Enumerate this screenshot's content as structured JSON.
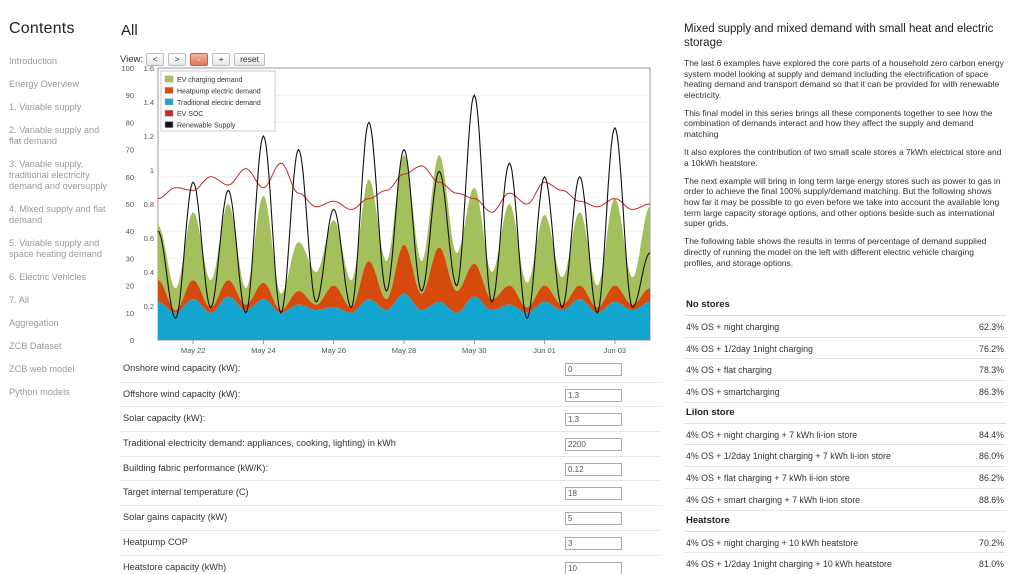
{
  "sidebar": {
    "title": "Contents",
    "items": [
      "Introduction",
      "Energy Overview",
      "1. Variable supply",
      "2. Variable supply and flat demand",
      "3. Variable supply, traditional electricity demand and oversupply",
      "4. Mixed supply and flat demand",
      "5. Variable supply and space heating demand",
      "6. Electric Vehicles",
      "7. All",
      "Aggregation",
      "ZCB Dataset",
      "ZCB web model",
      "Python models"
    ]
  },
  "main": {
    "title": "All",
    "view_label": "View:",
    "view_buttons": [
      "<",
      ">",
      "-",
      "+",
      "reset"
    ]
  },
  "chart_data": {
    "type": "area",
    "y_left": {
      "ticks": [
        0,
        10,
        20,
        30,
        40,
        50,
        60,
        70,
        80,
        90,
        100
      ],
      "ylim": [
        0,
        100
      ]
    },
    "y_right": {
      "ticks": [
        0.2,
        0.4,
        0.6,
        0.8,
        1.0,
        1.2,
        1.4,
        1.6
      ],
      "ylim": [
        0,
        1.6
      ]
    },
    "x_ticks": [
      "May 22",
      "May 24",
      "May 26",
      "May 28",
      "May 30",
      "Jun 01",
      "Jun 03"
    ],
    "x_range": [
      "May 21",
      "Jun 04"
    ],
    "legend": {
      "placement": "top-left",
      "entries": [
        {
          "name": "EV charging demand",
          "color": "#a4c05c"
        },
        {
          "name": "Heatpump electric demand",
          "color": "#d64b0c"
        },
        {
          "name": "Traditional electric demand",
          "color": "#12a5d0"
        },
        {
          "name": "EV SOC",
          "color": "#c62828"
        },
        {
          "name": "Renewable Supply",
          "color": "#111111"
        }
      ]
    },
    "x_days": [
      0.0,
      0.5,
      1.0,
      1.5,
      2.0,
      2.5,
      3.0,
      3.5,
      4.0,
      4.5,
      5.0,
      5.5,
      6.0,
      6.5,
      7.0,
      7.5,
      8.0,
      8.5,
      9.0,
      9.5,
      10.0,
      10.5,
      11.0,
      11.5,
      12.0,
      12.5,
      13.0,
      13.5,
      14.0
    ],
    "series": [
      {
        "name": "Traditional electric demand",
        "values": [
          14,
          10,
          15,
          10,
          16,
          11,
          15,
          10,
          13,
          11,
          12,
          10,
          15,
          11,
          17,
          11,
          14,
          10,
          16,
          11,
          13,
          10,
          14,
          11,
          15,
          10,
          14,
          11,
          14
        ]
      },
      {
        "name": "Heatpump electric demand",
        "values": [
          8,
          1,
          7,
          2,
          6,
          2,
          6,
          1,
          5,
          2,
          8,
          2,
          14,
          4,
          18,
          6,
          20,
          8,
          12,
          4,
          7,
          2,
          6,
          2,
          5,
          2,
          6,
          2,
          5
        ]
      },
      {
        "name": "EV charging demand",
        "values": [
          20,
          8,
          25,
          10,
          28,
          6,
          32,
          6,
          18,
          12,
          24,
          10,
          30,
          14,
          33,
          12,
          34,
          14,
          28,
          10,
          30,
          9,
          26,
          10,
          27,
          8,
          32,
          10,
          30
        ]
      },
      {
        "name": "EV SOC",
        "values": [
          52,
          56,
          55,
          60,
          57,
          63,
          56,
          65,
          54,
          49,
          51,
          48,
          52,
          55,
          61,
          64,
          58,
          54,
          52,
          47,
          54,
          50,
          58,
          55,
          51,
          49,
          52,
          48,
          50
        ]
      },
      {
        "name": "Renewable Supply",
        "values": [
          40,
          8,
          58,
          12,
          55,
          10,
          75,
          10,
          70,
          14,
          48,
          12,
          80,
          18,
          70,
          18,
          62,
          20,
          90,
          14,
          65,
          8,
          60,
          12,
          60,
          10,
          78,
          12,
          32
        ]
      }
    ]
  },
  "params": [
    {
      "label": "Onshore wind capacity (kW):",
      "value": "0"
    },
    {
      "label": "Offshore wind capacity (kW):",
      "value": "1.3"
    },
    {
      "label": "Solar capacity (kW):",
      "value": "1.3"
    },
    {
      "label": "Traditional electricity demand: appliances, cooking, lighting) in kWh",
      "value": "2200"
    },
    {
      "label": "Building fabric performance (kW/K):",
      "value": "0.12"
    },
    {
      "label": "Target internal temperature (C)",
      "value": "18"
    },
    {
      "label": "Solar gains capacity (kW)",
      "value": "5"
    },
    {
      "label": "Heatpump COP",
      "value": "3"
    },
    {
      "label": "Heatstore capacity (kWh)",
      "value": "10"
    }
  ],
  "right": {
    "title": "Mixed supply and mixed demand with small heat and electric storage",
    "paragraphs": [
      "The last 6 examples have explored the core parts of a household zero carbon energy system model looking at supply and demand including the electrification of space heating demand and transport demand so that it can be provided for with renewable electricity.",
      "This final model in this series brings all these components together to see how the combination of demands interact and how they affect the supply and demand matching",
      "It also explores the contribution of two small scale stores a 7kWh electrical store and a 10kWh heatstore.",
      "The next example will bring in long term large energy stores such as power to gas in order to achieve the final 100% supply/demand matching. But the following shows how far it may be possible to go even before we take into account the available long term large capacity storage options, and other options beside such as international super grids.",
      "The following table shows the results in terms of percentage of demand supplied directly of running the model on the left with different electric vehicle charging profiles, and storage options."
    ],
    "results": [
      {
        "heading": "No stores",
        "rows": [
          {
            "label": "4% OS + night charging",
            "value": "62.3%"
          },
          {
            "label": "4% OS + 1/2day 1night charging",
            "value": "76.2%"
          },
          {
            "label": "4% OS + flat charging",
            "value": "78.3%"
          },
          {
            "label": "4% OS + smartcharging",
            "value": "86.3%"
          }
        ]
      },
      {
        "heading": "LiIon store",
        "rows": [
          {
            "label": "4% OS + night charging + 7 kWh li-ion store",
            "value": "84.4%"
          },
          {
            "label": "4% OS + 1/2day 1night charging + 7 kWh li-ion store",
            "value": "86.0%"
          },
          {
            "label": "4% OS + flat charging + 7 kWh li-ion store",
            "value": "86.2%"
          },
          {
            "label": "4% OS + smart charging + 7 kWh li-ion store",
            "value": "88.6%"
          }
        ]
      },
      {
        "heading": "Heatstore",
        "rows": [
          {
            "label": "4% OS + night charging + 10 kWh heatstore",
            "value": "70.2%"
          },
          {
            "label": "4% OS + 1/2day 1night charging + 10 kWh heatstore",
            "value": "81.0%"
          }
        ]
      }
    ]
  }
}
